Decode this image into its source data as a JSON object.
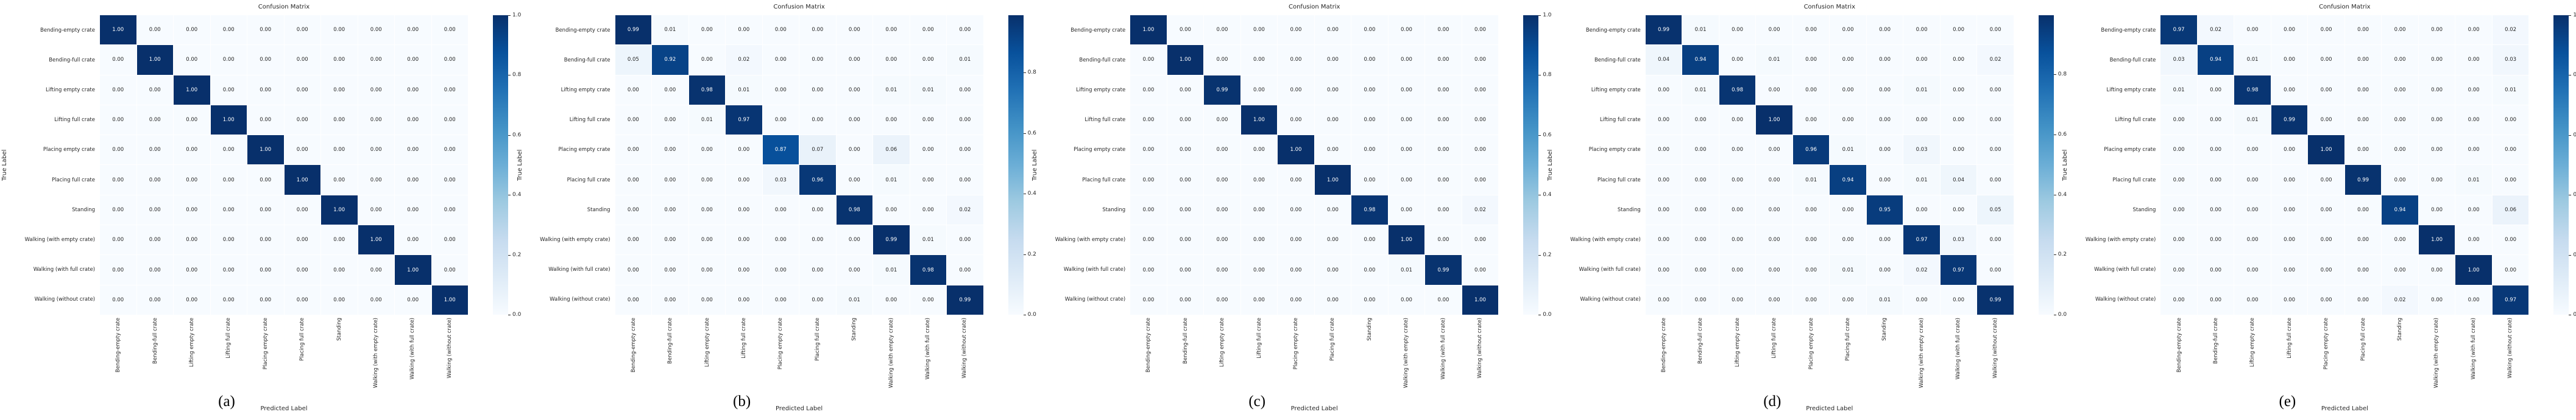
{
  "figure_title": "Confusion matrices of five models",
  "classes": [
    "Bending-empty crate",
    "Bending-full crate",
    "Lifting empty crate",
    "Lifting full crate",
    "Placing empty crate",
    "Placing full crate",
    "Standing",
    "Walking (with empty crate)",
    "Walking (with full crate)",
    "Walking (without crate)"
  ],
  "colormap": {
    "name": "Blues",
    "stops": [
      "#f7fbff",
      "#deebf7",
      "#c6dbef",
      "#9ecae1",
      "#6baed6",
      "#4292c6",
      "#2171b5",
      "#08519c",
      "#08306b"
    ]
  },
  "cell_text_colors": {
    "dark_cell": "#ffffff",
    "light_cell": "#262626"
  },
  "chart_data": [
    {
      "type": "heatmap",
      "caption": "(a)",
      "title": "Confusion Matrix",
      "xlabel": "Predicted Label",
      "ylabel": "True Label",
      "categories": [
        "Bending-empty crate",
        "Bending-full crate",
        "Lifting empty crate",
        "Lifting full crate",
        "Placing empty crate",
        "Placing full crate",
        "Standing",
        "Walking (with empty crate)",
        "Walking (with full crate)",
        "Walking (without crate)"
      ],
      "vmin": 0.0,
      "vmax": 1.0,
      "colorbar_ticks": [
        1.0,
        0.8,
        0.6,
        0.4,
        0.2,
        0.0
      ],
      "values": [
        [
          1.0,
          0.0,
          0.0,
          0.0,
          0.0,
          0.0,
          0.0,
          0.0,
          0.0,
          0.0
        ],
        [
          0.0,
          1.0,
          0.0,
          0.0,
          0.0,
          0.0,
          0.0,
          0.0,
          0.0,
          0.0
        ],
        [
          0.0,
          0.0,
          1.0,
          0.0,
          0.0,
          0.0,
          0.0,
          0.0,
          0.0,
          0.0
        ],
        [
          0.0,
          0.0,
          0.0,
          1.0,
          0.0,
          0.0,
          0.0,
          0.0,
          0.0,
          0.0
        ],
        [
          0.0,
          0.0,
          0.0,
          0.0,
          1.0,
          0.0,
          0.0,
          0.0,
          0.0,
          0.0
        ],
        [
          0.0,
          0.0,
          0.0,
          0.0,
          0.0,
          1.0,
          0.0,
          0.0,
          0.0,
          0.0
        ],
        [
          0.0,
          0.0,
          0.0,
          0.0,
          0.0,
          0.0,
          1.0,
          0.0,
          0.0,
          0.0
        ],
        [
          0.0,
          0.0,
          0.0,
          0.0,
          0.0,
          0.0,
          0.0,
          1.0,
          0.0,
          0.0
        ],
        [
          0.0,
          0.0,
          0.0,
          0.0,
          0.0,
          0.0,
          0.0,
          0.0,
          1.0,
          0.0
        ],
        [
          0.0,
          0.0,
          0.0,
          0.0,
          0.0,
          0.0,
          0.0,
          0.0,
          0.0,
          1.0
        ]
      ]
    },
    {
      "type": "heatmap",
      "caption": "(b)",
      "title": "Confusion Matrix",
      "xlabel": "Predicted Label",
      "ylabel": "True Label",
      "categories": [
        "Bending-empty crate",
        "Bending-full crate",
        "Lifting empty crate",
        "Lifting full crate",
        "Placing empty crate",
        "Placing full crate",
        "Standing",
        "Walking (with empty crate)",
        "Walking (with full crate)",
        "Walking (without crate)"
      ],
      "vmin": 0.0,
      "vmax": 0.99,
      "colorbar_ticks": [
        0.8,
        0.6,
        0.4,
        0.2,
        0.0
      ],
      "values": [
        [
          0.99,
          0.01,
          0.0,
          0.0,
          0.0,
          0.0,
          0.0,
          0.0,
          0.0,
          0.0
        ],
        [
          0.05,
          0.92,
          0.0,
          0.02,
          0.0,
          0.0,
          0.0,
          0.0,
          0.0,
          0.01
        ],
        [
          0.0,
          0.0,
          0.98,
          0.01,
          0.0,
          0.0,
          0.0,
          0.01,
          0.01,
          0.0
        ],
        [
          0.0,
          0.0,
          0.01,
          0.97,
          0.0,
          0.0,
          0.0,
          0.0,
          0.0,
          0.0
        ],
        [
          0.0,
          0.0,
          0.0,
          0.0,
          0.87,
          0.07,
          0.0,
          0.06,
          0.0,
          0.0
        ],
        [
          0.0,
          0.0,
          0.0,
          0.0,
          0.03,
          0.96,
          0.0,
          0.01,
          0.0,
          0.0
        ],
        [
          0.0,
          0.0,
          0.0,
          0.0,
          0.0,
          0.0,
          0.98,
          0.0,
          0.0,
          0.02
        ],
        [
          0.0,
          0.0,
          0.0,
          0.0,
          0.0,
          0.0,
          0.0,
          0.99,
          0.01,
          0.0
        ],
        [
          0.0,
          0.0,
          0.0,
          0.0,
          0.0,
          0.0,
          0.0,
          0.01,
          0.98,
          0.0
        ],
        [
          0.0,
          0.0,
          0.0,
          0.0,
          0.0,
          0.0,
          0.01,
          0.0,
          0.0,
          0.99
        ]
      ]
    },
    {
      "type": "heatmap",
      "caption": "(c)",
      "title": "Confusion Matrix",
      "xlabel": "Predicted Label",
      "ylabel": "True Label",
      "categories": [
        "Bending-empty crate",
        "Bending-full crate",
        "Lifting empty crate",
        "Lifting full crate",
        "Placing empty crate",
        "Placing full crate",
        "Standing",
        "Walking (with empty crate)",
        "Walking (with full crate)",
        "Walking (without crate)"
      ],
      "vmin": 0.0,
      "vmax": 1.0,
      "colorbar_ticks": [
        1.0,
        0.8,
        0.6,
        0.4,
        0.2,
        0.0
      ],
      "values": [
        [
          1.0,
          0.0,
          0.0,
          0.0,
          0.0,
          0.0,
          0.0,
          0.0,
          0.0,
          0.0
        ],
        [
          0.0,
          1.0,
          0.0,
          0.0,
          0.0,
          0.0,
          0.0,
          0.0,
          0.0,
          0.0
        ],
        [
          0.0,
          0.0,
          0.99,
          0.0,
          0.0,
          0.0,
          0.0,
          0.0,
          0.0,
          0.0
        ],
        [
          0.0,
          0.0,
          0.0,
          1.0,
          0.0,
          0.0,
          0.0,
          0.0,
          0.0,
          0.0
        ],
        [
          0.0,
          0.0,
          0.0,
          0.0,
          1.0,
          0.0,
          0.0,
          0.0,
          0.0,
          0.0
        ],
        [
          0.0,
          0.0,
          0.0,
          0.0,
          0.0,
          1.0,
          0.0,
          0.0,
          0.0,
          0.0
        ],
        [
          0.0,
          0.0,
          0.0,
          0.0,
          0.0,
          0.0,
          0.98,
          0.0,
          0.0,
          0.02
        ],
        [
          0.0,
          0.0,
          0.0,
          0.0,
          0.0,
          0.0,
          0.0,
          1.0,
          0.0,
          0.0
        ],
        [
          0.0,
          0.0,
          0.0,
          0.0,
          0.0,
          0.0,
          0.0,
          0.01,
          0.99,
          0.0
        ],
        [
          0.0,
          0.0,
          0.0,
          0.0,
          0.0,
          0.0,
          0.0,
          0.0,
          0.0,
          1.0
        ]
      ]
    },
    {
      "type": "heatmap",
      "caption": "(d)",
      "title": "Confusion Matrix",
      "xlabel": "Predicted Label",
      "ylabel": "True Label",
      "categories": [
        "Bending-empty crate",
        "Bending-full crate",
        "Lifting empty crate",
        "Lifting full crate",
        "Placing empty crate",
        "Placing full crate",
        "Standing",
        "Walking (with empty crate)",
        "Walking (with full crate)",
        "Walking (without crate)"
      ],
      "vmin": 0.0,
      "vmax": 0.997,
      "colorbar_ticks": [
        0.8,
        0.6,
        0.4,
        0.2,
        0.0
      ],
      "values": [
        [
          0.99,
          0.01,
          0.0,
          0.0,
          0.0,
          0.0,
          0.0,
          0.0,
          0.0,
          0.0
        ],
        [
          0.04,
          0.94,
          0.0,
          0.01,
          0.0,
          0.0,
          0.0,
          0.0,
          0.0,
          0.02
        ],
        [
          0.0,
          0.01,
          0.98,
          0.0,
          0.0,
          0.0,
          0.0,
          0.01,
          0.0,
          0.0
        ],
        [
          0.0,
          0.0,
          0.0,
          1.0,
          0.0,
          0.0,
          0.0,
          0.0,
          0.0,
          0.0
        ],
        [
          0.0,
          0.0,
          0.0,
          0.0,
          0.96,
          0.01,
          0.0,
          0.03,
          0.0,
          0.0
        ],
        [
          0.0,
          0.0,
          0.0,
          0.0,
          0.01,
          0.94,
          0.0,
          0.01,
          0.04,
          0.0
        ],
        [
          0.0,
          0.0,
          0.0,
          0.0,
          0.0,
          0.0,
          0.95,
          0.0,
          0.0,
          0.05
        ],
        [
          0.0,
          0.0,
          0.0,
          0.0,
          0.0,
          0.0,
          0.0,
          0.97,
          0.03,
          0.0
        ],
        [
          0.0,
          0.0,
          0.0,
          0.0,
          0.0,
          0.01,
          0.0,
          0.02,
          0.97,
          0.0
        ],
        [
          0.0,
          0.0,
          0.0,
          0.0,
          0.0,
          0.0,
          0.01,
          0.0,
          0.0,
          0.99
        ]
      ]
    },
    {
      "type": "heatmap",
      "caption": "(e)",
      "title": "Confusion Matrix",
      "xlabel": "Predicted Label",
      "ylabel": "True Label",
      "categories": [
        "Bending-empty crate",
        "Bending-full crate",
        "Lifting empty crate",
        "Lifting full crate",
        "Placing empty crate",
        "Placing full crate",
        "Standing",
        "Walking (with empty crate)",
        "Walking (with full crate)",
        "Walking (without crate)"
      ],
      "vmin": 0.0,
      "vmax": 1.0,
      "colorbar_ticks": [
        1.0,
        0.8,
        0.6,
        0.4,
        0.2,
        0.0
      ],
      "values": [
        [
          0.97,
          0.02,
          0.0,
          0.0,
          0.0,
          0.0,
          0.0,
          0.0,
          0.0,
          0.02
        ],
        [
          0.03,
          0.94,
          0.01,
          0.0,
          0.0,
          0.0,
          0.0,
          0.0,
          0.0,
          0.03
        ],
        [
          0.01,
          0.0,
          0.98,
          0.0,
          0.0,
          0.0,
          0.0,
          0.0,
          0.0,
          0.01
        ],
        [
          0.0,
          0.0,
          0.01,
          0.99,
          0.0,
          0.0,
          0.0,
          0.0,
          0.0,
          0.0
        ],
        [
          0.0,
          0.0,
          0.0,
          0.0,
          1.0,
          0.0,
          0.0,
          0.0,
          0.0,
          0.0
        ],
        [
          0.0,
          0.0,
          0.0,
          0.0,
          0.0,
          0.99,
          0.0,
          0.0,
          0.01,
          0.0
        ],
        [
          0.0,
          0.0,
          0.0,
          0.0,
          0.0,
          0.0,
          0.94,
          0.0,
          0.0,
          0.06
        ],
        [
          0.0,
          0.0,
          0.0,
          0.0,
          0.0,
          0.0,
          0.0,
          1.0,
          0.0,
          0.0
        ],
        [
          0.0,
          0.0,
          0.0,
          0.0,
          0.0,
          0.0,
          0.0,
          0.0,
          1.0,
          0.0
        ],
        [
          0.0,
          0.0,
          0.0,
          0.0,
          0.0,
          0.0,
          0.02,
          0.0,
          0.0,
          0.97
        ]
      ]
    }
  ]
}
